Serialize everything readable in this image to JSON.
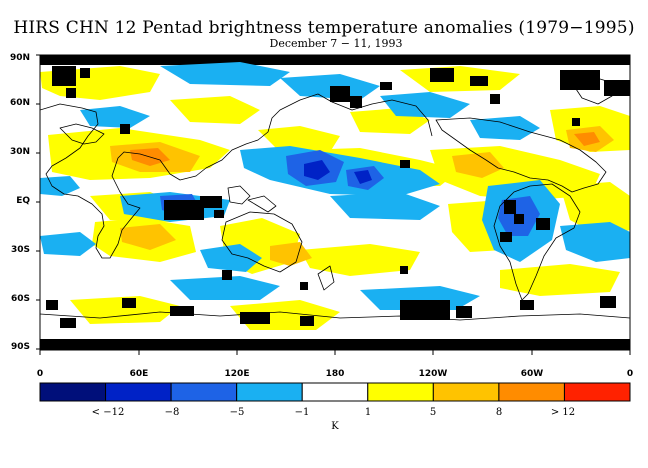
{
  "title": "HIRS CHN 12 Pentad brightness temperature anomalies (1979−1995)",
  "subtitle": "December 7 − 11, 1993",
  "lat_labels": [
    "90N",
    "60N",
    "30N",
    "EQ",
    "30S",
    "60S",
    "90S"
  ],
  "lon_labels": [
    "0",
    "60E",
    "120E",
    "180",
    "120W",
    "60W",
    "0"
  ],
  "colorbar": {
    "colors": [
      "#000f7a",
      "#0022c6",
      "#1e63e6",
      "#1ab0f2",
      "#ffffff",
      "#ffff00",
      "#ffc300",
      "#ff8c00",
      "#ff2200"
    ],
    "labels": [
      "< −12",
      "−8",
      "−5",
      "−1",
      "1",
      "5",
      "8",
      "> 12"
    ],
    "unit": "K"
  },
  "colors": {
    "strong_cold": "#0022c6",
    "cold": "#1e63e6",
    "cool": "#1ab0f2",
    "warm": "#ffff00",
    "hot": "#ffc300",
    "strong_hot": "#ff8c00",
    "missing": "#000000"
  }
}
